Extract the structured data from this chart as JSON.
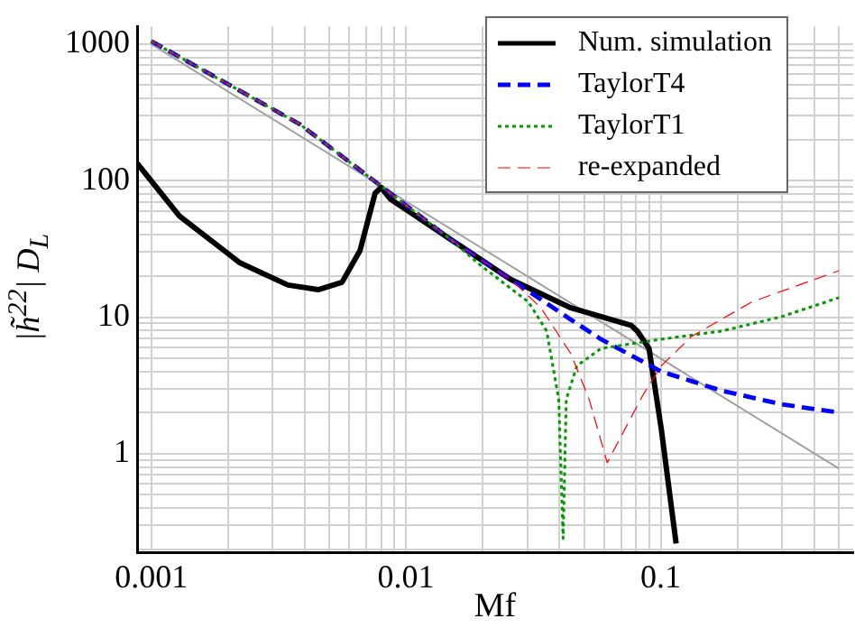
{
  "chart_data": {
    "type": "line",
    "xlabel": "Mf",
    "ylabel": "|h̃$^{22}$| D$_{L}$",
    "log": "xy",
    "grid": true,
    "legend": "top right",
    "marker": "none",
    "xlim": [
      0.00088,
      0.57
    ],
    "ylim": [
      0.19,
      1340
    ],
    "xticks": [
      0.001,
      {
        "value": 0.002,
        "label": null
      },
      {
        "value": 0.003,
        "label": null
      },
      {
        "value": 0.004,
        "label": null
      },
      {
        "value": 0.005,
        "label": null
      },
      {
        "value": 0.006,
        "label": null
      },
      {
        "value": 0.007,
        "label": null
      },
      {
        "value": 0.008,
        "label": null
      },
      {
        "value": 0.009,
        "label": null
      },
      0.01,
      {
        "value": 0.02,
        "label": null
      },
      {
        "value": 0.03,
        "label": null
      },
      {
        "value": 0.04,
        "label": null
      },
      {
        "value": 0.05,
        "label": null
      },
      {
        "value": 0.06,
        "label": null
      },
      {
        "value": 0.07,
        "label": null
      },
      {
        "value": 0.08,
        "label": null
      },
      {
        "value": 0.09,
        "label": null
      },
      0.1,
      {
        "value": 0.2,
        "label": null
      },
      {
        "value": 0.3,
        "label": null
      },
      {
        "value": 0.4,
        "label": null
      },
      {
        "value": 0.5,
        "label": null
      }
    ],
    "yticks": [
      {
        "value": 0.2,
        "label": null
      },
      {
        "value": 0.3,
        "label": null
      },
      {
        "value": 0.4,
        "label": null
      },
      {
        "value": 0.5,
        "label": null
      },
      {
        "value": 0.6,
        "label": null
      },
      {
        "value": 0.7,
        "label": null
      },
      {
        "value": 0.8,
        "label": null
      },
      {
        "value": 0.9,
        "label": null
      },
      1,
      {
        "value": 2,
        "label": null
      },
      {
        "value": 3,
        "label": null
      },
      {
        "value": 4,
        "label": null
      },
      {
        "value": 5,
        "label": null
      },
      {
        "value": 6,
        "label": null
      },
      {
        "value": 7,
        "label": null
      },
      {
        "value": 8,
        "label": null
      },
      {
        "value": 9,
        "label": null
      },
      10,
      {
        "value": 20,
        "label": null
      },
      {
        "value": 30,
        "label": null
      },
      {
        "value": 40,
        "label": null
      },
      {
        "value": 50,
        "label": null
      },
      {
        "value": 60,
        "label": null
      },
      {
        "value": 70,
        "label": null
      },
      {
        "value": 80,
        "label": null
      },
      {
        "value": 90,
        "label": null
      },
      100,
      {
        "value": 200,
        "label": null
      },
      {
        "value": 300,
        "label": null
      },
      {
        "value": 400,
        "label": null
      },
      {
        "value": 500,
        "label": null
      },
      {
        "value": 600,
        "label": null
      },
      {
        "value": 700,
        "label": null
      },
      {
        "value": 800,
        "label": null
      },
      {
        "value": 900,
        "label": null
      },
      1000
    ],
    "series": [
      {
        "color": "#a0a0a0",
        "line_style": "solid",
        "x": [
          0.001,
          0.5
        ],
        "values": [
          1000,
          0.78
        ]
      },
      {
        "name": "Num. simulation",
        "color": "#000000",
        "line_style": "solid",
        "x": [
          0.00088,
          0.00129,
          0.00223,
          0.00344,
          0.00452,
          0.00561,
          0.0066,
          0.00757,
          0.008,
          0.0087,
          0.0102,
          0.015,
          0.0258,
          0.0444,
          0.0766,
          0.081,
          0.09,
          0.1005,
          0.115
        ],
        "values": [
          134,
          55,
          25,
          17.2,
          15.9,
          18,
          30.7,
          81,
          89,
          73,
          60,
          37,
          18.9,
          11.7,
          8.7,
          7.9,
          5.9,
          1.53,
          0.22
        ]
      },
      {
        "name": "TaylorT4",
        "color": "#0000ff",
        "line_style": "dashed",
        "x": [
          0.001,
          0.00384,
          0.008,
          0.015,
          0.0258,
          0.0444,
          0.0583,
          0.1005,
          0.173,
          0.299,
          0.501
        ],
        "values": [
          1050,
          258,
          91,
          37,
          18.9,
          9.6,
          6.9,
          4.0,
          2.9,
          2.3,
          2.0
        ]
      },
      {
        "name": "TaylorT1",
        "color": "#009900",
        "line_style": "dotted",
        "x": [
          0.001,
          0.00384,
          0.008,
          0.015,
          0.0196,
          0.0303,
          0.0357,
          0.0398,
          0.0414,
          0.0426,
          0.0469,
          0.0583,
          0.1005,
          0.173,
          0.299,
          0.501
        ],
        "values": [
          1050,
          258,
          91,
          37,
          24,
          12.9,
          7.9,
          2.5,
          0.24,
          2.5,
          4.4,
          5.9,
          6.9,
          7.9,
          10.1,
          13.9
        ]
      },
      {
        "name": "re-expanded",
        "color": "#ff0000",
        "line_style": "dashed",
        "x": [
          0.001,
          0.00384,
          0.008,
          0.015,
          0.0258,
          0.0339,
          0.0444,
          0.0524,
          0.0617,
          0.0726,
          0.0853,
          0.1005,
          0.132,
          0.2275,
          0.501
        ],
        "values": [
          1050,
          258,
          91,
          37,
          18.9,
          11.7,
          5.4,
          2.5,
          0.86,
          1.53,
          2.7,
          4.4,
          7.2,
          12.9,
          21.9
        ]
      }
    ]
  }
}
